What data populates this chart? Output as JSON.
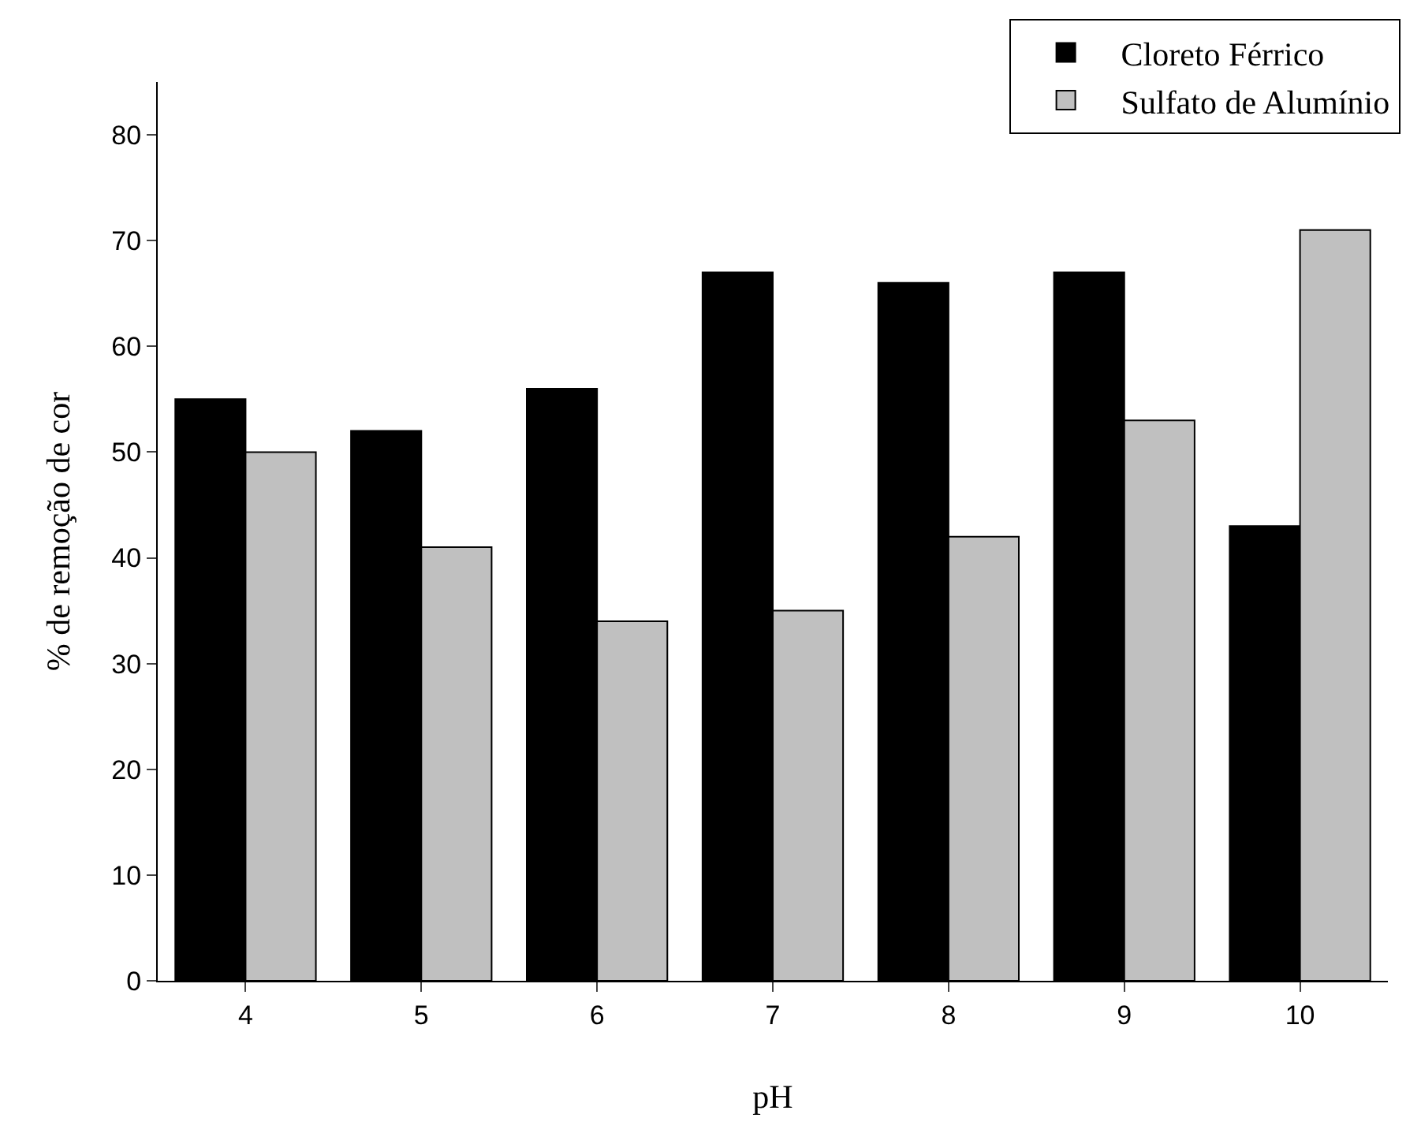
{
  "chart_data": {
    "type": "bar",
    "xlabel": "pH",
    "ylabel": "% de remoção de cor",
    "categories": [
      "4",
      "5",
      "6",
      "7",
      "8",
      "9",
      "10"
    ],
    "series": [
      {
        "name": "Cloreto Férrico",
        "color": "#000000",
        "values": [
          55,
          52,
          56,
          67,
          66,
          67,
          43
        ]
      },
      {
        "name": "Sulfato de Alumínio",
        "color": "#c0c0c0",
        "values": [
          50,
          41,
          34,
          35,
          42,
          53,
          71
        ]
      }
    ],
    "ylim": [
      0,
      85
    ],
    "yticks": [
      0,
      10,
      20,
      30,
      40,
      50,
      60,
      70,
      80
    ],
    "legend": "top right"
  }
}
